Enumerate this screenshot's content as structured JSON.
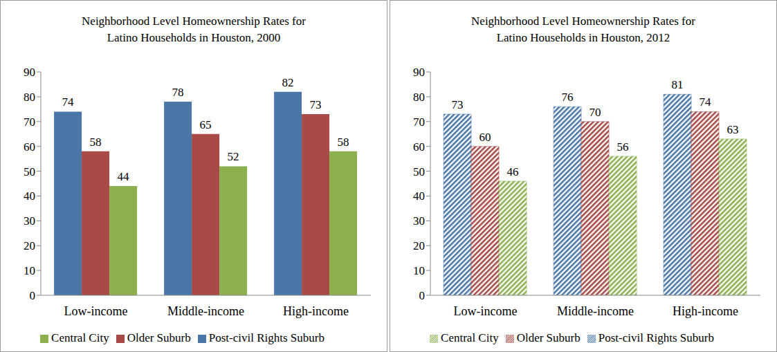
{
  "chart_data": [
    {
      "type": "bar",
      "title": "Neighborhood Level Homeownership Rates for Latino Households in Houston, 2000",
      "categories": [
        "Low-income",
        "Middle-income",
        "High-income"
      ],
      "series": [
        {
          "name": "Post-civil Rights Suburb",
          "color": "#4a77a8",
          "values": [
            74,
            78,
            82
          ]
        },
        {
          "name": "Older Suburb",
          "color": "#a84a47",
          "values": [
            58,
            65,
            73
          ]
        },
        {
          "name": "Central City",
          "color": "#8db04f",
          "values": [
            44,
            52,
            58
          ]
        }
      ],
      "ylim": [
        0,
        90
      ],
      "yticks": [
        0,
        10,
        20,
        30,
        40,
        50,
        60,
        70,
        80,
        90
      ],
      "grid": false,
      "legend": "bottom",
      "data_labels": true
    },
    {
      "type": "bar",
      "title": "Neighborhood Level Homeownership Rates for Latino Households in Houston, 2012",
      "categories": [
        "Low-income",
        "Middle-income",
        "High-income"
      ],
      "series": [
        {
          "name": "Post-civil Rights Suburb",
          "color": "#4a77a8",
          "values": [
            73,
            76,
            81
          ]
        },
        {
          "name": "Older Suburb",
          "color": "#a84a47",
          "values": [
            60,
            70,
            74
          ]
        },
        {
          "name": "Central City",
          "color": "#8db04f",
          "values": [
            46,
            56,
            63
          ]
        }
      ],
      "ylim": [
        0,
        90
      ],
      "yticks": [
        0,
        10,
        20,
        30,
        40,
        50,
        60,
        70,
        80,
        90
      ],
      "grid": false,
      "legend": "bottom",
      "data_labels": true
    }
  ]
}
